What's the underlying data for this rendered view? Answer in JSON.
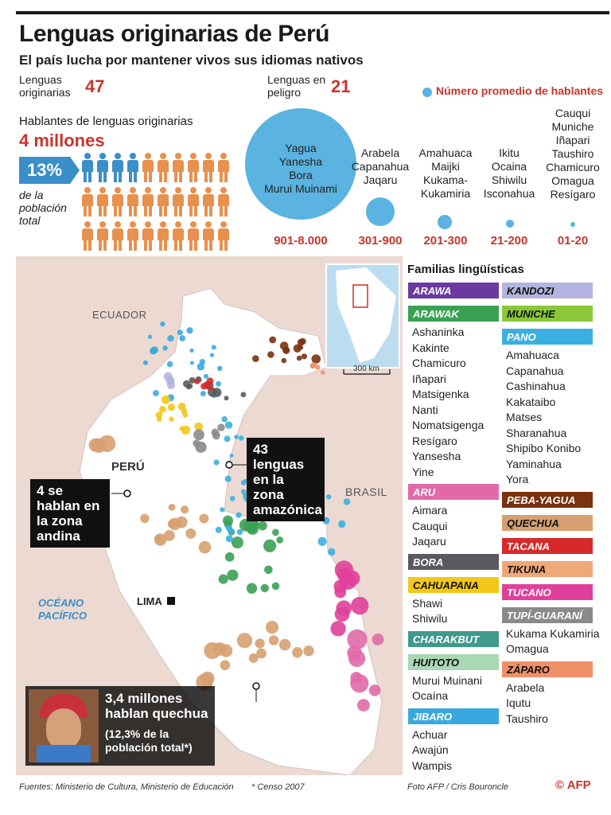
{
  "header": {
    "title": "Lenguas originarias de Perú",
    "subtitle": "El país lucha por mantener vivos sus idiomas nativos"
  },
  "stats": {
    "originarias_label": "Lenguas originarias",
    "originarias_value": "47",
    "peligro_label": "Lenguas en peligro",
    "peligro_value": "21",
    "hablantes_label": "Hablantes de lenguas originarias",
    "hablantes_value": "4 millones",
    "percent": "13%",
    "percent_caption": "de la población total",
    "people_total": 30,
    "people_highlight": 4
  },
  "bubbles": {
    "legend_label": "Número promedio de hablantes",
    "groups": [
      {
        "languages": [
          "Yagua",
          "Yanesha",
          "Bora",
          "Murui Muinami"
        ],
        "range": "901-8.000"
      },
      {
        "languages": [
          "Arabela",
          "Capanahua",
          "Jaqaru"
        ],
        "range": "301-900"
      },
      {
        "languages": [
          "Amahuaca",
          "Maijki",
          "Kukama-",
          "Kukamiria"
        ],
        "range": "201-300"
      },
      {
        "languages": [
          "Ikitu",
          "Ocaina",
          "Shiwilu",
          "Isconahua"
        ],
        "range": "21-200"
      },
      {
        "languages": [
          "Cauqui",
          "Muniche",
          "Iñapari",
          "Taushiro",
          "Chamicuro",
          "Omagua",
          "Resígaro"
        ],
        "range": "01-20"
      }
    ]
  },
  "map": {
    "labels": {
      "ecuador": "ECUADOR",
      "peru": "PERÚ",
      "brasil": "BRASIL",
      "oceano": "OCÉANO PACÍFICO",
      "lima": "LIMA",
      "scale": "300 km"
    },
    "callouts": {
      "amazonica": "43 lenguas en la zona amazónica",
      "andina": "4 se hablan en la zona andina",
      "quechua_line1": "3,4 millones hablan quechua",
      "quechua_line2": "(12,3% de la población total*)"
    }
  },
  "families": {
    "title": "Familias lingüísticas",
    "col1": [
      {
        "name": "ARAWA",
        "color": "#6a3aa0",
        "items": []
      },
      {
        "name": "ARAWAK",
        "color": "#3aa153",
        "items": [
          "Ashaninka",
          "Kakinte",
          "Chamicuro",
          "Iñapari",
          "Matsigenka",
          "Nanti",
          "Nomatsigenga",
          "Resígaro",
          "Yansesha",
          "Yine"
        ]
      },
      {
        "name": "ARU",
        "color": "#e06aa8",
        "items": [
          "Aimara",
          "Cauqui",
          "Jaqaru"
        ]
      },
      {
        "name": "BORA",
        "color": "#5a5a5e",
        "items": []
      },
      {
        "name": "CAHUAPANA",
        "color": "#f2c818",
        "items": [
          "Shawi",
          "Shiwilu"
        ]
      },
      {
        "name": "CHARAKBUT",
        "color": "#3f9a8c",
        "items": []
      },
      {
        "name": "HUITOTO",
        "color": "#a8d8b4",
        "items": [
          "Murui Muinani",
          "Ocaína"
        ]
      },
      {
        "name": "JIBARO",
        "color": "#3aa8e0",
        "items": [
          "Achuar",
          "Awajún",
          "Wampis"
        ]
      }
    ],
    "col2": [
      {
        "name": "KANDOZI",
        "color": "#b4b4e0",
        "items": []
      },
      {
        "name": "MUNICHE",
        "color": "#8ac83a",
        "items": []
      },
      {
        "name": "PANO",
        "color": "#3ab0e0",
        "items": [
          "Amahuaca",
          "Capanahua",
          "Cashinahua",
          "Kakataibo",
          "Matses",
          "Sharanahua",
          "Shipibo Konibo",
          "Yaminahua",
          "Yora"
        ]
      },
      {
        "name": "PEBA-YAGUA",
        "color": "#7a3210",
        "items": []
      },
      {
        "name": "QUECHUA",
        "color": "#d6a070",
        "items": []
      },
      {
        "name": "TACANA",
        "color": "#d62a2a",
        "items": []
      },
      {
        "name": "TIKUNA",
        "color": "#f0a878",
        "items": []
      },
      {
        "name": "TUCANO",
        "color": "#e0409a",
        "items": []
      },
      {
        "name": "TUPÍ-GUARANÍ",
        "color": "#8a8a8a",
        "items": [
          "Kukama Kukamiria",
          "Omagua"
        ]
      },
      {
        "name": "ZÁPARO",
        "color": "#f09068",
        "items": [
          "Arabela",
          "Iqutu",
          "Taushiro"
        ]
      }
    ]
  },
  "footer": {
    "sources": "Fuentes: Ministerio de Cultura, Ministerio de Educación",
    "census": "* Censo 2007",
    "photo": "Foto AFP / Cris Bouroncle",
    "brand_c": "©",
    "brand": "AFP"
  }
}
